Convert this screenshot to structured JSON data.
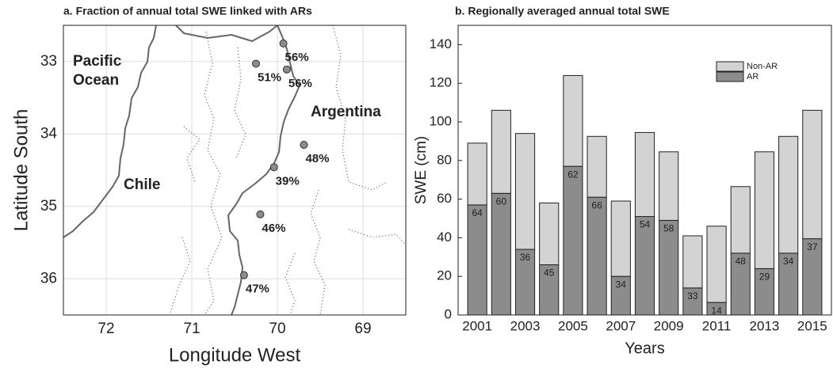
{
  "chart_data": [
    {
      "type": "map",
      "title": "a. Fraction of annual total SWE linked with ARs",
      "x_label": "Longitude West",
      "y_label": "Latitude South",
      "xlim": [
        72.5,
        68.5
      ],
      "ylim": [
        36.5,
        32.5
      ],
      "xticks": [
        72,
        71,
        70,
        69
      ],
      "yticks": [
        33,
        34,
        35,
        36
      ],
      "grid": true,
      "regions": [
        "Pacific Ocean",
        "Chile",
        "Argentina"
      ],
      "color": "#8c8c8c",
      "x": [
        69.93,
        70.25,
        69.89,
        69.69,
        70.04,
        70.2,
        70.39
      ],
      "y": [
        32.75,
        33.03,
        33.11,
        34.15,
        34.46,
        35.11,
        35.95
      ],
      "values": [
        56,
        51,
        56,
        48,
        39,
        46,
        47
      ],
      "value_labels": [
        "56%",
        "51%",
        "56%",
        "48%",
        "39%",
        "46%",
        "47%"
      ]
    },
    {
      "type": "bar",
      "stacked": true,
      "title": "b. Regionally averaged annual total SWE",
      "x_label": "Years",
      "y_label": "SWE (cm)",
      "x": [
        2001,
        2002,
        2003,
        2004,
        2005,
        2006,
        2007,
        2008,
        2009,
        2010,
        2011,
        2012,
        2013,
        2014,
        2015
      ],
      "xlim": [
        2000.2,
        2015.8
      ],
      "xticks": [
        2001,
        2003,
        2005,
        2007,
        2009,
        2011,
        2013,
        2015
      ],
      "ylim": [
        0,
        150
      ],
      "yticks": [
        0,
        20,
        40,
        60,
        80,
        100,
        120,
        140
      ],
      "legend": "upper right",
      "series": [
        {
          "name": "AR",
          "color": "#8c8c8c",
          "values": [
            57,
            63,
            34,
            26,
            77,
            61,
            20,
            51,
            49,
            14,
            6.5,
            32,
            24,
            32,
            39.5
          ],
          "percent": [
            64,
            60,
            36,
            45,
            62,
            66,
            34,
            54,
            58,
            33,
            14,
            48,
            29,
            34,
            37
          ]
        },
        {
          "name": "Non-AR",
          "color": "#d3d3d3",
          "values": [
            32,
            43,
            60,
            32,
            47,
            31.5,
            39,
            43.5,
            35.5,
            27,
            39.5,
            34.5,
            60.5,
            60.5,
            66.5
          ]
        }
      ]
    }
  ]
}
